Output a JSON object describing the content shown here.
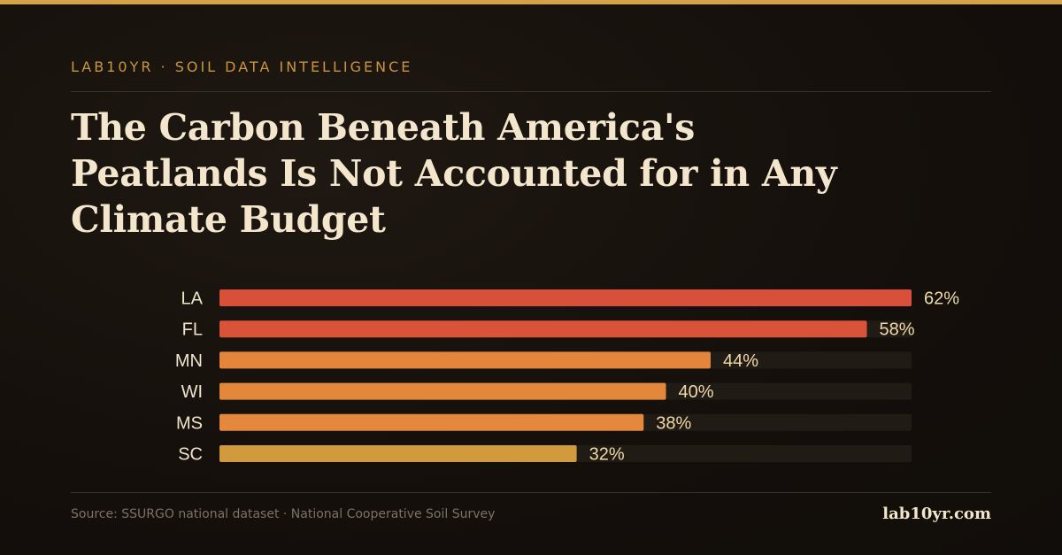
{
  "header": {
    "kicker": "LAB10YR · SOIL DATA INTELLIGENCE",
    "title": "The Carbon Beneath America's Peatlands Is Not Accounted for in Any Climate Budget"
  },
  "chart_data": {
    "type": "bar",
    "orientation": "horizontal",
    "categories": [
      "LA",
      "FL",
      "MN",
      "WI",
      "MS",
      "SC"
    ],
    "values": [
      62,
      58,
      44,
      40,
      38,
      32
    ],
    "value_labels": [
      "62%",
      "58%",
      "44%",
      "40%",
      "38%",
      "32%"
    ],
    "bar_colors": [
      "#d9503a",
      "#d9533b",
      "#e3853a",
      "#e3873b",
      "#e3883c",
      "#d19a3c"
    ],
    "track_color": "#211b16",
    "xlim": [
      0,
      62
    ],
    "grid": false,
    "legend": "none"
  },
  "footer": {
    "source": "Source: SSURGO national dataset · National Cooperative Soil Survey",
    "brand": "lab10yr.com"
  },
  "colors": {
    "accent": "#d6a246",
    "title": "#f3e6cc",
    "category_label": "#efe3cc",
    "value_label": "#efd9a6"
  }
}
